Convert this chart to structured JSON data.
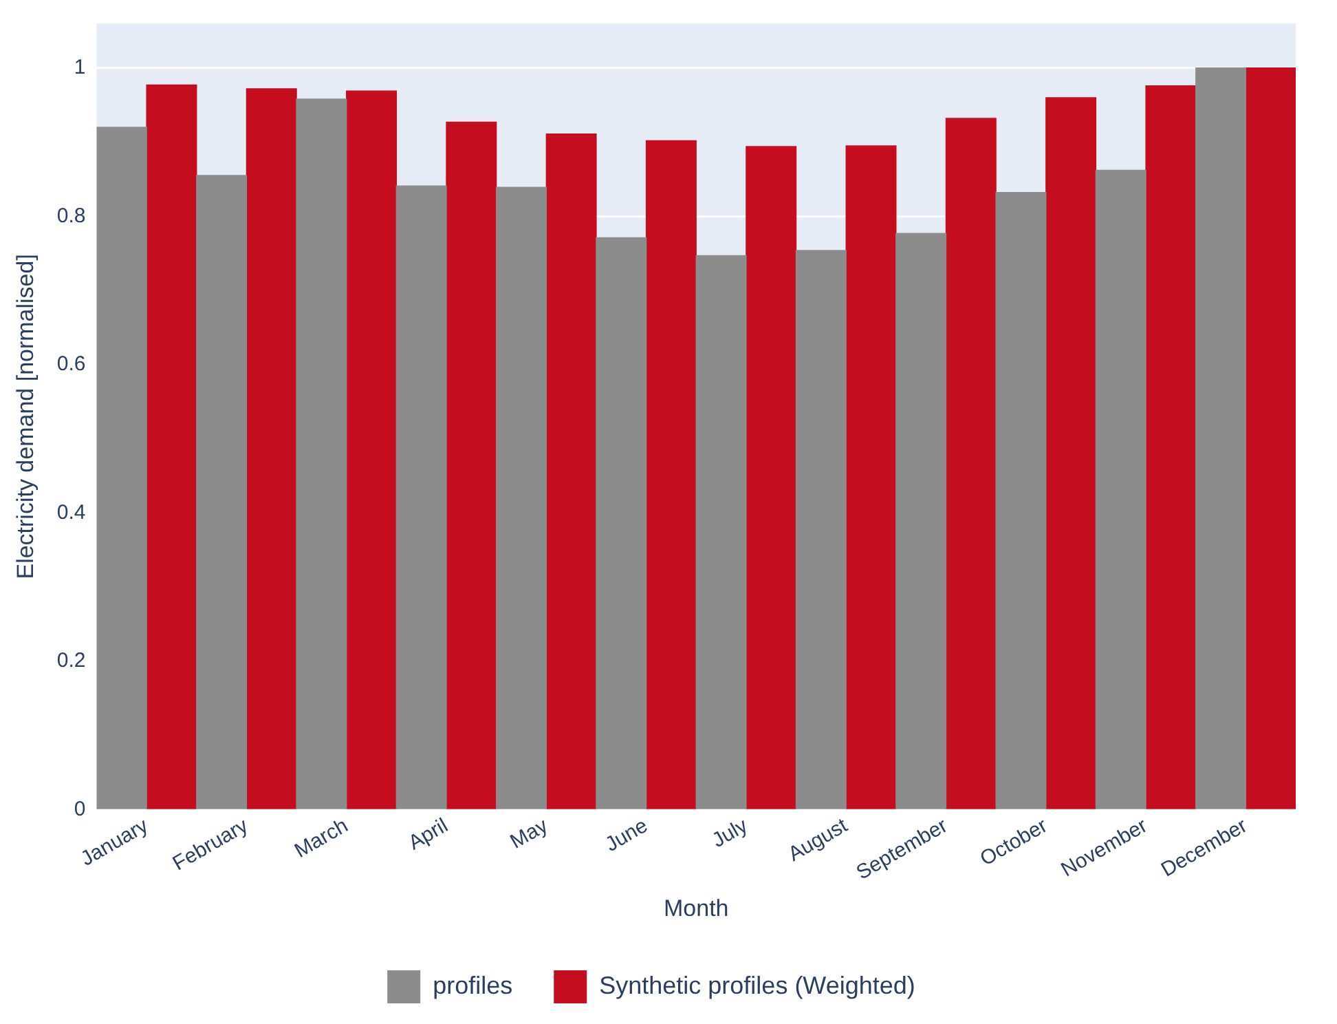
{
  "chart_data": {
    "type": "bar",
    "xlabel": "Month",
    "ylabel": "Electricity demand [normalised]",
    "categories": [
      "January",
      "February",
      "March",
      "April",
      "May",
      "June",
      "July",
      "August",
      "September",
      "October",
      "November",
      "December"
    ],
    "series": [
      {
        "name": "profiles",
        "color": "#8c8c8c",
        "values": [
          0.92,
          0.855,
          0.958,
          0.841,
          0.839,
          0.771,
          0.747,
          0.754,
          0.777,
          0.832,
          0.862,
          1.0
        ]
      },
      {
        "name": "Synthetic profiles (Weighted)",
        "color": "#c40e20",
        "values": [
          0.977,
          0.972,
          0.969,
          0.927,
          0.911,
          0.902,
          0.894,
          0.895,
          0.932,
          0.96,
          0.976,
          1.0
        ]
      }
    ],
    "ylim": [
      0,
      1.06
    ],
    "yticks": [
      0,
      0.2,
      0.4,
      0.6,
      0.8,
      1
    ],
    "grid": "y",
    "legend": "bottom"
  }
}
